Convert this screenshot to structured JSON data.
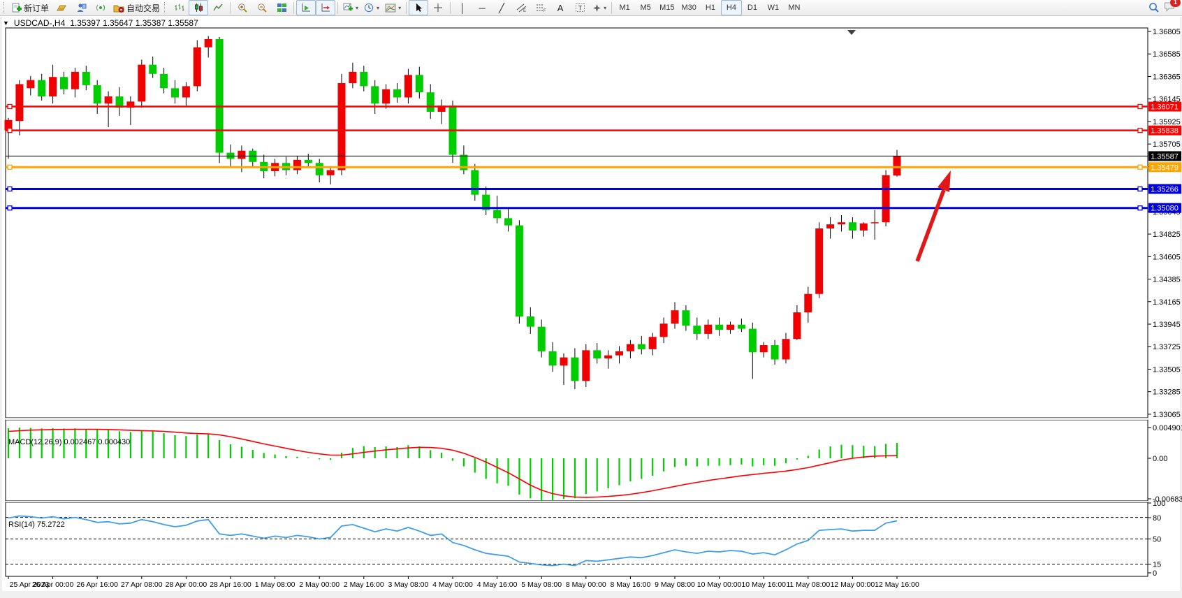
{
  "toolbar": {
    "new_order": "新订单",
    "auto_trading": "自动交易",
    "timeframes": [
      "M1",
      "M5",
      "M15",
      "M30",
      "H1",
      "H4",
      "D1",
      "W1",
      "MN"
    ],
    "active_timeframe": "H4",
    "notification_badge": "1",
    "glyphs": {
      "vertical_line": "│",
      "horizontal_line": "─",
      "trendline": "╱",
      "text": "A",
      "text_label": "T"
    }
  },
  "chart_header": {
    "symbol_period": "USDCAD-,H4",
    "ohlc": "1.35397 1.35647 1.35387 1.35587"
  },
  "chart_data": {
    "type": "candlestick",
    "symbol": "USDCAD",
    "period": "H4",
    "up_color": "#f00000",
    "down_color": "#00cd00",
    "current_price": 1.35587,
    "y_axis_ticks": [
      1.36805,
      1.36585,
      1.36365,
      1.36145,
      1.35925,
      1.35705,
      1.35485,
      1.35265,
      1.35045,
      1.34825,
      1.34605,
      1.34385,
      1.34165,
      1.33945,
      1.33725,
      1.33505,
      1.33285,
      1.33065
    ],
    "x_axis_labels": [
      "25 Apr 2023",
      "26 Apr 00:00",
      "26 Apr 16:00",
      "27 Apr 08:00",
      "28 Apr 00:00",
      "28 Apr 16:00",
      "1 May 08:00",
      "2 May 00:00",
      "2 May 16:00",
      "3 May 08:00",
      "4 May 00:00",
      "4 May 16:00",
      "5 May 08:00",
      "8 May 00:00",
      "8 May 16:00",
      "9 May 08:00",
      "10 May 00:00",
      "10 May 16:00",
      "11 May 08:00",
      "12 May 00:00",
      "12 May 16:00"
    ],
    "candles": [
      [
        1.3584,
        1.3596,
        1.3556,
        1.3594
      ],
      [
        1.3593,
        1.3633,
        1.3579,
        1.3629
      ],
      [
        1.3625,
        1.3637,
        1.3618,
        1.3633
      ],
      [
        1.3633,
        1.3639,
        1.3613,
        1.3617
      ],
      [
        1.3617,
        1.3648,
        1.361,
        1.3636
      ],
      [
        1.3636,
        1.3641,
        1.3619,
        1.3624
      ],
      [
        1.3624,
        1.3645,
        1.3616,
        1.3641
      ],
      [
        1.3641,
        1.3647,
        1.3623,
        1.3628
      ],
      [
        1.3628,
        1.3633,
        1.36,
        1.361
      ],
      [
        1.361,
        1.3622,
        1.3587,
        1.3617
      ],
      [
        1.3617,
        1.3626,
        1.3598,
        1.3606
      ],
      [
        1.3606,
        1.3617,
        1.3589,
        1.3612
      ],
      [
        1.3612,
        1.3653,
        1.3606,
        1.3648
      ],
      [
        1.3648,
        1.3656,
        1.3635,
        1.3639
      ],
      [
        1.3639,
        1.3645,
        1.362,
        1.3625
      ],
      [
        1.3625,
        1.3633,
        1.361,
        1.3616
      ],
      [
        1.3616,
        1.3631,
        1.3608,
        1.3627
      ],
      [
        1.3627,
        1.3672,
        1.3622,
        1.3665
      ],
      [
        1.3665,
        1.3676,
        1.3655,
        1.3673
      ],
      [
        1.3673,
        1.3675,
        1.3552,
        1.3562
      ],
      [
        1.3562,
        1.357,
        1.3548,
        1.3556
      ],
      [
        1.3556,
        1.3569,
        1.3543,
        1.3564
      ],
      [
        1.3564,
        1.3566,
        1.3548,
        1.3553
      ],
      [
        1.3553,
        1.356,
        1.3537,
        1.3544
      ],
      [
        1.3544,
        1.3556,
        1.3539,
        1.3552
      ],
      [
        1.3552,
        1.3558,
        1.354,
        1.3545
      ],
      [
        1.3545,
        1.3559,
        1.3541,
        1.3555
      ],
      [
        1.3555,
        1.3561,
        1.3547,
        1.3552
      ],
      [
        1.3552,
        1.3556,
        1.3533,
        1.354
      ],
      [
        1.354,
        1.3549,
        1.3531,
        1.3545
      ],
      [
        1.3545,
        1.3639,
        1.354,
        1.363
      ],
      [
        1.363,
        1.365,
        1.3625,
        1.3641
      ],
      [
        1.3641,
        1.3647,
        1.3622,
        1.3627
      ],
      [
        1.3627,
        1.3633,
        1.36,
        1.361
      ],
      [
        1.361,
        1.3629,
        1.3605,
        1.3624
      ],
      [
        1.3624,
        1.363,
        1.3611,
        1.3616
      ],
      [
        1.3616,
        1.3644,
        1.361,
        1.3638
      ],
      [
        1.3638,
        1.3646,
        1.3615,
        1.3621
      ],
      [
        1.3621,
        1.3629,
        1.3595,
        1.3602
      ],
      [
        1.3602,
        1.3614,
        1.359,
        1.3608
      ],
      [
        1.3608,
        1.3613,
        1.3552,
        1.356
      ],
      [
        1.356,
        1.3569,
        1.3541,
        1.3545
      ],
      [
        1.3545,
        1.3551,
        1.3515,
        1.3521
      ],
      [
        1.3521,
        1.3529,
        1.3501,
        1.3506
      ],
      [
        1.3506,
        1.352,
        1.3493,
        1.3498
      ],
      [
        1.3498,
        1.3507,
        1.3485,
        1.3491
      ],
      [
        1.3491,
        1.3496,
        1.3395,
        1.3402
      ],
      [
        1.3402,
        1.3411,
        1.3385,
        1.3392
      ],
      [
        1.3392,
        1.3399,
        1.3362,
        1.3368
      ],
      [
        1.3368,
        1.3377,
        1.3348,
        1.3354
      ],
      [
        1.3354,
        1.3366,
        1.3335,
        1.3362
      ],
      [
        1.3362,
        1.3371,
        1.3331,
        1.3339
      ],
      [
        1.3339,
        1.3375,
        1.3333,
        1.3369
      ],
      [
        1.3369,
        1.3376,
        1.3356,
        1.3361
      ],
      [
        1.3361,
        1.3369,
        1.3351,
        1.3364
      ],
      [
        1.3364,
        1.3373,
        1.3356,
        1.3368
      ],
      [
        1.3368,
        1.3379,
        1.3361,
        1.3375
      ],
      [
        1.3375,
        1.3383,
        1.3365,
        1.337
      ],
      [
        1.337,
        1.3386,
        1.3364,
        1.3382
      ],
      [
        1.3382,
        1.3401,
        1.3376,
        1.3395
      ],
      [
        1.3395,
        1.3416,
        1.339,
        1.3408
      ],
      [
        1.3408,
        1.3413,
        1.3388,
        1.3393
      ],
      [
        1.3393,
        1.3401,
        1.3379,
        1.3385
      ],
      [
        1.3385,
        1.3399,
        1.338,
        1.3394
      ],
      [
        1.3394,
        1.3401,
        1.3383,
        1.3389
      ],
      [
        1.3389,
        1.3397,
        1.3385,
        1.3394
      ],
      [
        1.3394,
        1.34,
        1.3387,
        1.339
      ],
      [
        1.339,
        1.3396,
        1.3341,
        1.3367
      ],
      [
        1.3367,
        1.3377,
        1.3362,
        1.3374
      ],
      [
        1.3374,
        1.3379,
        1.3355,
        1.336
      ],
      [
        1.336,
        1.3386,
        1.3356,
        1.338
      ],
      [
        1.338,
        1.3413,
        1.3379,
        1.3406
      ],
      [
        1.3406,
        1.3431,
        1.3396,
        1.3424
      ],
      [
        1.3424,
        1.3494,
        1.342,
        1.3488
      ],
      [
        1.3488,
        1.3499,
        1.3478,
        1.3492
      ],
      [
        1.3492,
        1.3501,
        1.3485,
        1.3494
      ],
      [
        1.3494,
        1.3499,
        1.3478,
        1.3486
      ],
      [
        1.3486,
        1.3494,
        1.348,
        1.3493
      ],
      [
        1.3493,
        1.3506,
        1.3477,
        1.3494
      ],
      [
        1.3494,
        1.3545,
        1.349,
        1.354
      ],
      [
        1.35397,
        1.35647,
        1.35387,
        1.35587
      ]
    ],
    "hlines": [
      {
        "name": "resistance-line-1",
        "price": 1.36071,
        "label": "1.36071",
        "color": "#fe0000",
        "width": 2.5,
        "handles": true
      },
      {
        "name": "resistance-line-2",
        "price": 1.35838,
        "label": "1.35838",
        "color": "#fe0000",
        "width": 2.5,
        "handles": true
      },
      {
        "name": "current-price-line",
        "price": 1.35587,
        "label": "1.35587",
        "color": "#000000",
        "width": 1,
        "handles": false
      },
      {
        "name": "pivot-line",
        "price": 1.35479,
        "label": "1.35479",
        "color": "#ffa500",
        "width": 3,
        "handles": true
      },
      {
        "name": "support-line-1",
        "price": 1.35266,
        "label": "1.35266",
        "color": "#0000e0",
        "width": 3,
        "handles": true
      },
      {
        "name": "support-line-2",
        "price": 1.3508,
        "label": "1.35080",
        "color": "#0000e0",
        "width": 3,
        "handles": true
      }
    ],
    "annotation_arrow": {
      "color": "#e11818",
      "tail": [
        1313,
        374
      ],
      "tip": [
        1361,
        244
      ]
    },
    "macd": {
      "label": "MACD(12,26,9) 0.002467 0.000430",
      "axis_labels": [
        "0.004901",
        "0.00",
        "-0.006838"
      ],
      "hist_color": "#00cd00",
      "signal_color": "#fe0000",
      "hist": [
        0.0048,
        0.0049,
        0.00485,
        0.00478,
        0.00482,
        0.00476,
        0.00478,
        0.0047,
        0.00465,
        0.0045,
        0.00432,
        0.0042,
        0.00438,
        0.00428,
        0.004,
        0.0037,
        0.00355,
        0.0038,
        0.0039,
        0.0029,
        0.00225,
        0.00185,
        0.00135,
        0.00085,
        0.0006,
        0.00035,
        0.00025,
        0.0001,
        -0.00015,
        -0.00025,
        0.0009,
        0.00165,
        0.00195,
        0.0018,
        0.0019,
        0.0018,
        0.0021,
        0.0019,
        0.0013,
        0.0009,
        -0.0004,
        -0.0013,
        -0.0023,
        -0.0033,
        -0.004,
        -0.0044,
        -0.0058,
        -0.0064,
        -0.00684,
        -0.0067,
        -0.0065,
        -0.0064,
        -0.0057,
        -0.0053,
        -0.0048,
        -0.0043,
        -0.0037,
        -0.0033,
        -0.0028,
        -0.0021,
        -0.0014,
        -0.0012,
        -0.0013,
        -0.0012,
        -0.0012,
        -0.0011,
        -0.001,
        -0.0013,
        -0.0011,
        -0.0012,
        -0.0008,
        -0.0002,
        0.0004,
        0.0014,
        0.0019,
        0.00215,
        0.0021,
        0.002,
        0.00195,
        0.0023,
        0.00247
      ],
      "signal": [
        0.0043,
        0.0044,
        0.0045,
        0.00455,
        0.0046,
        0.00462,
        0.00463,
        0.00464,
        0.00463,
        0.0046,
        0.00455,
        0.00448,
        0.00442,
        0.00438,
        0.0043,
        0.00418,
        0.00405,
        0.00395,
        0.0039,
        0.00375,
        0.00345,
        0.0031,
        0.0027,
        0.0023,
        0.00195,
        0.0016,
        0.00125,
        0.00095,
        0.0007,
        0.0005,
        0.0005,
        0.0007,
        0.00095,
        0.00115,
        0.00135,
        0.0015,
        0.00165,
        0.00175,
        0.00172,
        0.0016,
        0.0013,
        0.0008,
        0.00015,
        -0.0006,
        -0.00145,
        -0.0023,
        -0.0033,
        -0.0043,
        -0.0051,
        -0.00565,
        -0.006,
        -0.0062,
        -0.00625,
        -0.0062,
        -0.0061,
        -0.00595,
        -0.00575,
        -0.0055,
        -0.0052,
        -0.00485,
        -0.0045,
        -0.00415,
        -0.00385,
        -0.00355,
        -0.0033,
        -0.00305,
        -0.0028,
        -0.0026,
        -0.0024,
        -0.00225,
        -0.00205,
        -0.0018,
        -0.0015,
        -0.0011,
        -0.0007,
        -0.0003,
        0.0,
        0.0002,
        0.00035,
        0.0004,
        0.00043
      ]
    },
    "rsi": {
      "label": "RSI(14) 75.2722",
      "color": "#3e9ee8",
      "levels": [
        80,
        50,
        15
      ],
      "axis_labels": [
        "100",
        "80",
        "50",
        "15",
        "0"
      ],
      "values": [
        79,
        82,
        81,
        79,
        81,
        78,
        80,
        77,
        73,
        74,
        71,
        72,
        77,
        74,
        70,
        67,
        69,
        75,
        77,
        57,
        55,
        57,
        54,
        51,
        54,
        52,
        55,
        53,
        50,
        52,
        68,
        70,
        65,
        60,
        64,
        61,
        66,
        61,
        55,
        57,
        45,
        41,
        35,
        30,
        28,
        26,
        18,
        16,
        14,
        13,
        15,
        13,
        20,
        19,
        21,
        23,
        25,
        24,
        27,
        31,
        35,
        32,
        30,
        33,
        32,
        34,
        33,
        29,
        31,
        28,
        35,
        43,
        48,
        62,
        63,
        64,
        61,
        62,
        62,
        72,
        75.27
      ]
    }
  }
}
